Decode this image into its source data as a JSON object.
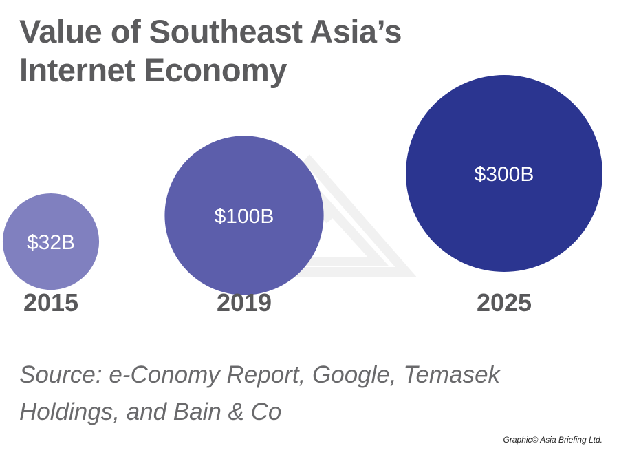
{
  "title": [
    "Value of Southeast Asia’s",
    "Internet Economy"
  ],
  "chart_data": {
    "type": "bubble",
    "title": "Value of Southeast Asia’s Internet Economy",
    "categories": [
      "2015",
      "2019",
      "2025"
    ],
    "values": [
      32,
      100,
      300
    ],
    "unit": "USD billions",
    "data_labels": [
      "$32B",
      "$100B",
      "$300B"
    ],
    "colors": [
      "#8080bf",
      "#5759a8",
      "#2b3590"
    ]
  },
  "source": "Source: e-Conomy Report, Google, Temasek Holdings, and Bain & Co",
  "credit": "Graphic© Asia Briefing Ltd."
}
